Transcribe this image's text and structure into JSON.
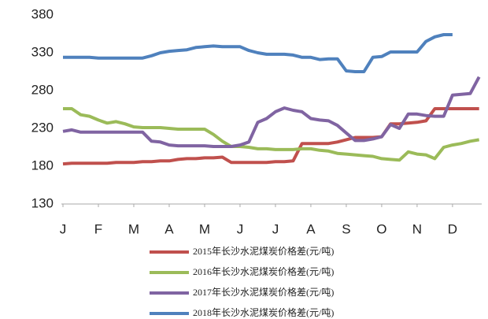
{
  "chart_data": {
    "type": "line",
    "x": [
      0,
      0.25,
      0.5,
      0.75,
      1,
      1.25,
      1.5,
      1.75,
      2,
      2.25,
      2.5,
      2.75,
      3,
      3.25,
      3.5,
      3.75,
      4,
      4.25,
      4.5,
      4.75,
      5,
      5.25,
      5.5,
      5.75,
      6,
      6.25,
      6.5,
      6.75,
      7,
      7.25,
      7.5,
      7.75,
      8,
      8.25,
      8.5,
      8.75,
      9,
      9.25,
      9.5,
      9.75,
      10,
      10.25,
      10.5,
      10.75,
      11,
      11.25,
      11.5,
      11.75
    ],
    "series": [
      {
        "name": "2015年长沙水泥煤炭价格差(元/吨)",
        "color": "#c0504d",
        "values": [
          183,
          184,
          184,
          184,
          184,
          184,
          185,
          185,
          185,
          186,
          186,
          187,
          187,
          189,
          190,
          190,
          191,
          191,
          192,
          185,
          185,
          185,
          185,
          185,
          186,
          186,
          187,
          210,
          210,
          210,
          210,
          212,
          215,
          218,
          218,
          218,
          219,
          236,
          236,
          237,
          238,
          240,
          256,
          256,
          256,
          256,
          256,
          256
        ]
      },
      {
        "name": "2016年长沙水泥煤炭价格差(元/吨)",
        "color": "#9bbb59",
        "values": [
          256,
          256,
          248,
          246,
          241,
          237,
          239,
          236,
          232,
          231,
          231,
          231,
          230,
          229,
          229,
          229,
          229,
          222,
          213,
          206,
          206,
          205,
          203,
          203,
          202,
          202,
          202,
          203,
          203,
          201,
          200,
          197,
          196,
          195,
          194,
          193,
          190,
          189,
          188,
          199,
          196,
          195,
          190,
          205,
          208,
          210,
          213,
          215
        ]
      },
      {
        "name": "2017年长沙水泥煤炭价格差(元/吨)",
        "color": "#8064a2",
        "values": [
          226,
          228,
          225,
          225,
          225,
          225,
          225,
          225,
          225,
          225,
          213,
          212,
          208,
          207,
          207,
          207,
          207,
          206,
          206,
          206,
          208,
          212,
          238,
          243,
          252,
          257,
          254,
          252,
          243,
          241,
          240,
          234,
          224,
          214,
          214,
          216,
          219,
          235,
          230,
          249,
          249,
          247,
          246,
          246,
          274,
          275,
          276,
          298
        ]
      },
      {
        "name": "2018年长沙水泥煤炭价格差(元/吨)",
        "color": "#4f81bd",
        "values": [
          324,
          324,
          324,
          324,
          323,
          323,
          323,
          323,
          323,
          323,
          326,
          330,
          332,
          333,
          334,
          337,
          338,
          339,
          338,
          338,
          338,
          333,
          330,
          328,
          328,
          328,
          327,
          324,
          324,
          321,
          322,
          322,
          306,
          305,
          305,
          324,
          325,
          331,
          331,
          331,
          331,
          345,
          351,
          354,
          354,
          null,
          null,
          null
        ]
      }
    ],
    "xlim": [
      0,
      11.78
    ],
    "xticks": [
      {
        "value": 0,
        "label": "J"
      },
      {
        "value": 1,
        "label": "F"
      },
      {
        "value": 2,
        "label": "M"
      },
      {
        "value": 3,
        "label": "A"
      },
      {
        "value": 4,
        "label": "M"
      },
      {
        "value": 5,
        "label": "J"
      },
      {
        "value": 6,
        "label": "J"
      },
      {
        "value": 7,
        "label": "A"
      },
      {
        "value": 8,
        "label": "S"
      },
      {
        "value": 9,
        "label": "O"
      },
      {
        "value": 10,
        "label": "N"
      },
      {
        "value": 11,
        "label": "D"
      }
    ],
    "ylim": [
      130,
      380
    ],
    "yticks": [
      130,
      180,
      230,
      280,
      330,
      380
    ],
    "grid": false,
    "legend": "bottom"
  }
}
